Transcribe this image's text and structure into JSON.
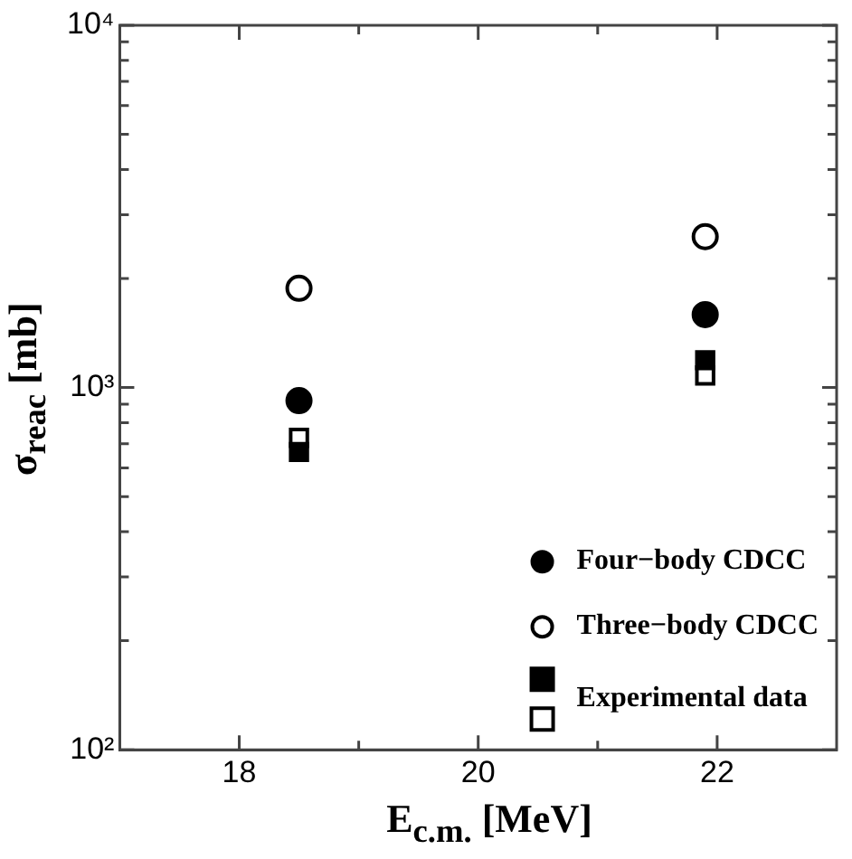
{
  "chart_data": {
    "type": "scatter",
    "xlabel": "E$_{c.m.}$ [MeV]",
    "ylabel": "σ$_{reac}$ [mb]",
    "xlim": [
      17,
      23
    ],
    "xticks": [
      18,
      {
        "value": 19,
        "label": null
      },
      20,
      {
        "value": 21,
        "label": null
      },
      22
    ],
    "ylim": [
      100,
      10000
    ],
    "log": "y",
    "yticks": [
      {
        "value": 100,
        "label": "10²"
      },
      {
        "value": 200,
        "label": null
      },
      {
        "value": 300,
        "label": null
      },
      {
        "value": 400,
        "label": null
      },
      {
        "value": 500,
        "label": null
      },
      {
        "value": 600,
        "label": null
      },
      {
        "value": 700,
        "label": null
      },
      {
        "value": 800,
        "label": null
      },
      {
        "value": 900,
        "label": null
      },
      {
        "value": 1000,
        "label": "10³"
      },
      {
        "value": 2000,
        "label": null
      },
      {
        "value": 3000,
        "label": null
      },
      {
        "value": 4000,
        "label": null
      },
      {
        "value": 5000,
        "label": null
      },
      {
        "value": 6000,
        "label": null
      },
      {
        "value": 7000,
        "label": null
      },
      {
        "value": 8000,
        "label": null
      },
      {
        "value": 9000,
        "label": null
      },
      {
        "value": 10000,
        "label": "10⁴"
      }
    ],
    "grid": false,
    "legend": "bottom right",
    "x": [
      18.5,
      21.9
    ],
    "series": [
      {
        "name": "Four−body CDCC",
        "color": "#000000",
        "marker": "circle",
        "values": [
          920,
          1590
        ]
      },
      {
        "name": "Three−body CDCC",
        "color": "#ffffff",
        "marker": "circle",
        "values": [
          1880,
          2610
        ]
      },
      {
        "name": "Experimental data",
        "color": "#000000",
        "marker": "square",
        "values": [
          664,
          1190
        ]
      },
      {
        "color": "#ffffff",
        "marker": "square",
        "values": [
          726,
          1080
        ]
      }
    ]
  }
}
